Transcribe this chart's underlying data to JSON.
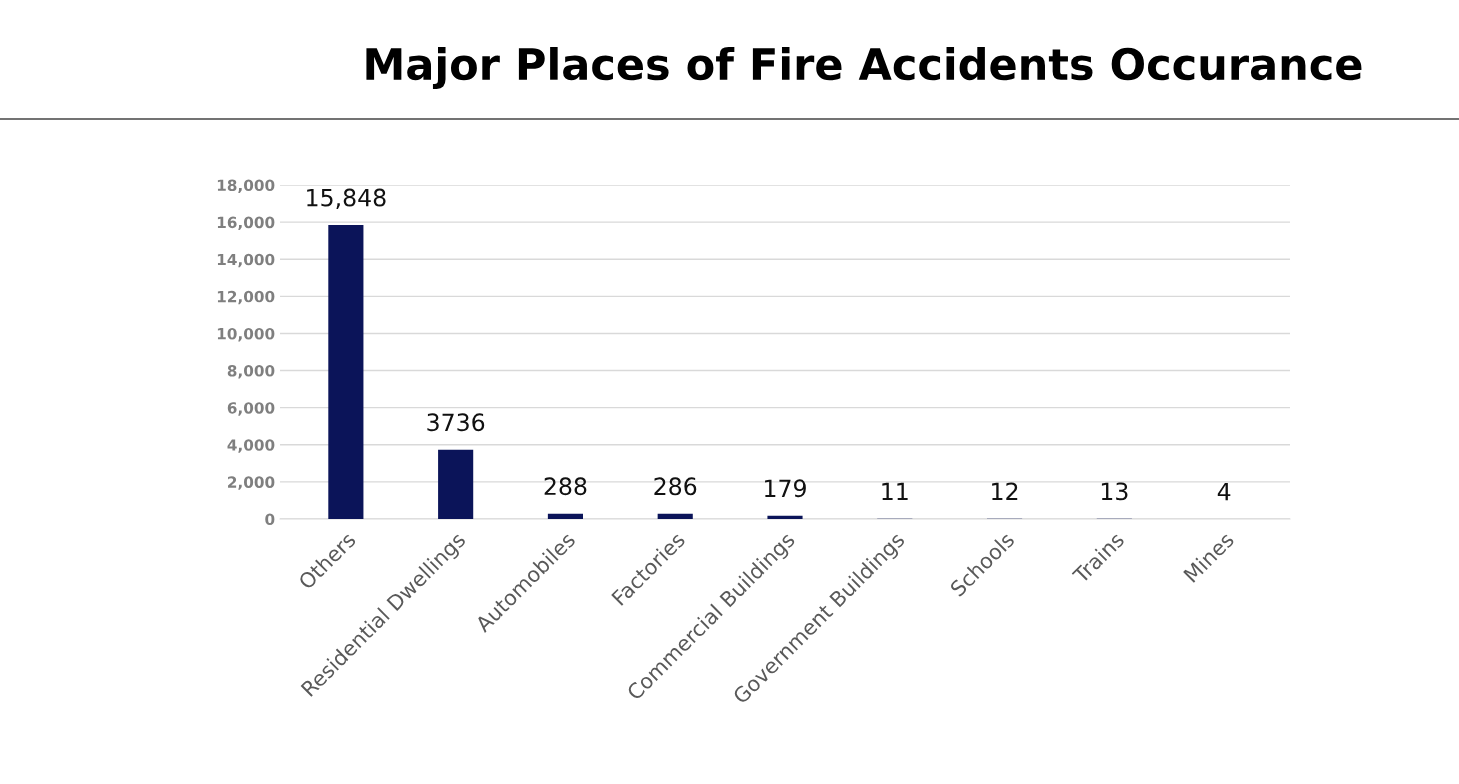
{
  "chart_data": {
    "type": "bar",
    "title": "Major Places of Fire Accidents Occurance",
    "categories": [
      "Others",
      "Residential Dwellings",
      "Automobiles",
      "Factories",
      "Commercial Buildings",
      "Government Buildings",
      "Schools",
      "Trains",
      "Mines"
    ],
    "values": [
      15848,
      3736,
      288,
      286,
      179,
      11,
      12,
      13,
      4
    ],
    "value_labels": [
      "15,848",
      "3736",
      "288",
      "286",
      "179",
      "11",
      "12",
      "13",
      "4"
    ],
    "color": "#0b1459",
    "ylim": [
      0,
      18000
    ],
    "yticks": [
      {
        "value": 0,
        "label": "0"
      },
      {
        "value": 2000,
        "label": "2,000"
      },
      {
        "value": 4000,
        "label": "4,000"
      },
      {
        "value": 6000,
        "label": "6,000"
      },
      {
        "value": 8000,
        "label": "8,000"
      },
      {
        "value": 10000,
        "label": "10,000"
      },
      {
        "value": 12000,
        "label": "12,000"
      },
      {
        "value": 14000,
        "label": "14,000"
      },
      {
        "value": 16000,
        "label": "16,000"
      },
      {
        "value": 18000,
        "label": "18,000"
      }
    ],
    "grid": "y",
    "legend": false
  }
}
